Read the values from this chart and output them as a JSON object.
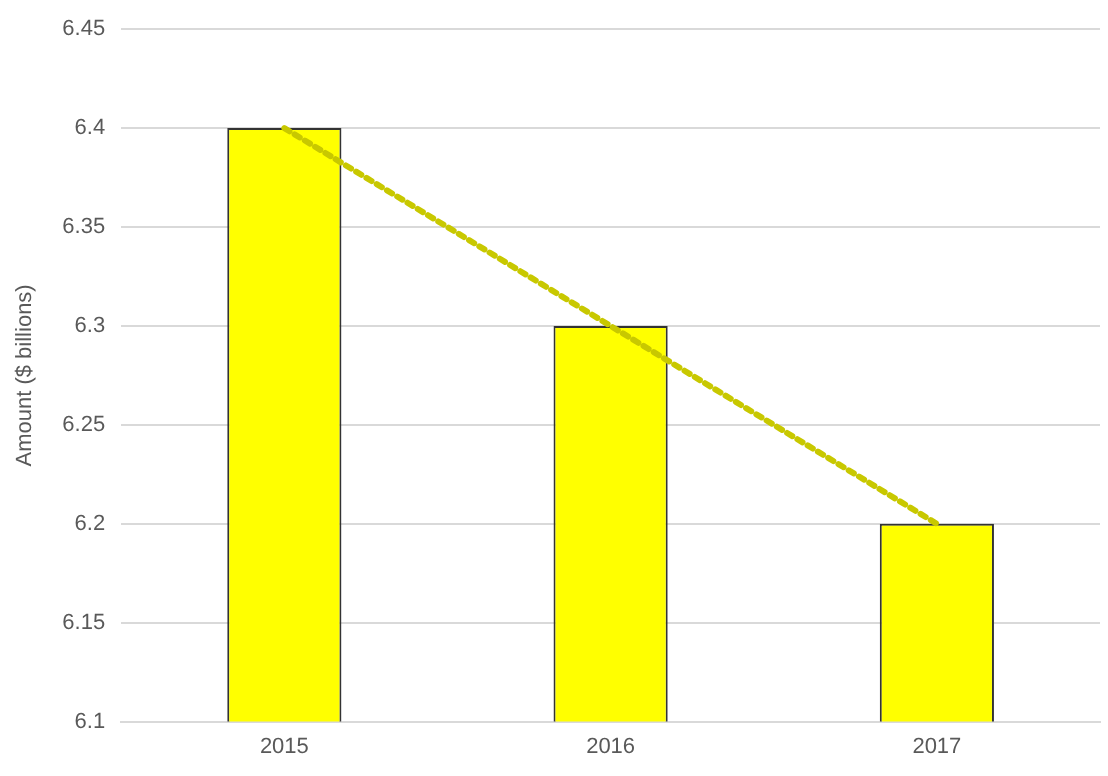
{
  "chart_data": {
    "type": "bar",
    "ylabel": "Amount ($ billions)",
    "categories": [
      "2015",
      "2016",
      "2017"
    ],
    "series": [
      {
        "color": "#ffff00",
        "values": [
          6.4,
          6.3,
          6.2
        ]
      },
      {
        "type": "line",
        "color": "#c8c800",
        "values": [
          6.4,
          6.3,
          6.2
        ],
        "line_style": "dotted",
        "marker": "none"
      }
    ],
    "ylim": [
      6.1,
      6.45
    ],
    "yticks": [
      6.1,
      6.15,
      6.2,
      6.25,
      6.3,
      6.35,
      6.4,
      6.45
    ],
    "grid": "y",
    "legend": false
  }
}
